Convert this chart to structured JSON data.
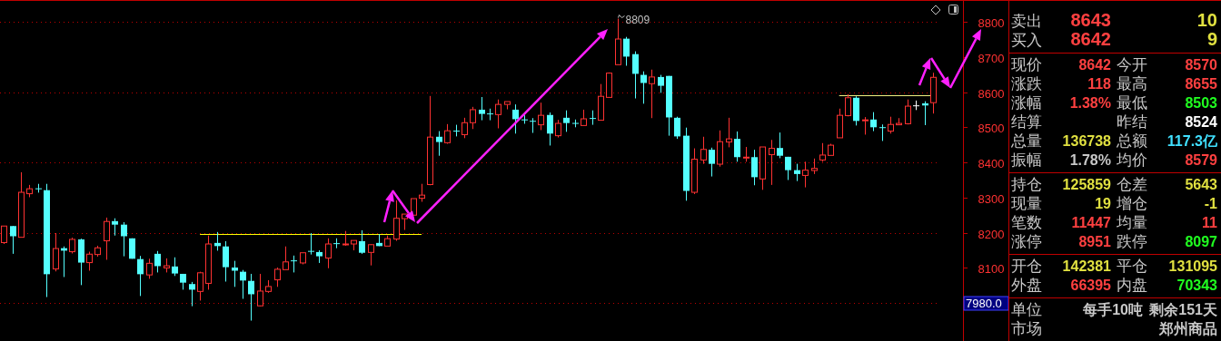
{
  "chart_data": [
    {
      "type": "candlestick",
      "tick_labels": "y",
      "grid": "y",
      "categories": [
        null,
        null,
        null,
        null,
        null,
        null,
        null,
        null,
        null,
        null,
        null,
        null,
        null,
        null,
        null,
        null,
        null,
        null,
        null,
        null,
        null,
        null,
        null,
        null,
        null,
        null,
        null,
        null,
        null,
        null,
        null,
        null,
        null,
        null,
        null,
        null,
        null,
        null,
        null,
        null,
        null,
        null,
        null,
        null,
        null,
        null,
        null,
        null,
        null,
        null,
        null,
        null,
        null,
        null,
        null,
        null,
        null,
        null,
        null,
        null,
        null,
        null,
        null,
        null,
        null,
        null,
        null,
        null,
        null,
        null,
        null,
        null,
        null,
        null,
        null,
        null,
        null,
        null,
        null,
        null,
        null,
        null,
        null,
        null,
        null,
        null,
        null,
        null,
        null,
        null,
        null,
        null,
        null,
        null,
        null,
        null,
        null,
        null,
        null,
        null,
        null,
        null,
        null,
        null,
        null,
        null,
        null,
        null,
        null,
        null
      ],
      "ohlc": [
        [
          8172,
          8219,
          8168,
          8219
        ],
        [
          8219,
          8219,
          8140,
          8190
        ],
        [
          8187,
          8372,
          8187,
          8315
        ],
        [
          8311,
          8336,
          8301,
          8325
        ],
        [
          8325,
          8339,
          8314,
          8324
        ],
        [
          8321,
          8339,
          8017,
          8082
        ],
        [
          8097,
          8199,
          8090,
          8155
        ],
        [
          8156,
          8161,
          8074,
          8149
        ],
        [
          8146,
          8186,
          8141,
          8181
        ],
        [
          8181,
          8183,
          8051,
          8115
        ],
        [
          8115,
          8146,
          8092,
          8139
        ],
        [
          8138,
          8163,
          8132,
          8157
        ],
        [
          8177,
          8243,
          8123,
          8232
        ],
        [
          8233,
          8241,
          8192,
          8223
        ],
        [
          8223,
          8230,
          8133,
          8190
        ],
        [
          8184,
          8184,
          8126,
          8126
        ],
        [
          8125,
          8134,
          8020,
          8082
        ],
        [
          8080,
          8126,
          8069,
          8113
        ],
        [
          8140,
          8148,
          8087,
          8105
        ],
        [
          8100,
          8127,
          8087,
          8106
        ],
        [
          8104,
          8130,
          8077,
          8084
        ],
        [
          8083,
          8083,
          8038,
          8058
        ],
        [
          8054,
          8060,
          7991,
          8038
        ],
        [
          8033,
          8089,
          8007,
          8086
        ],
        [
          8056,
          8192,
          8038,
          8168
        ],
        [
          8171,
          8202,
          8149,
          8162
        ],
        [
          8161,
          8176,
          8061,
          8102
        ],
        [
          8101,
          8120,
          8046,
          8092
        ],
        [
          8089,
          8094,
          8012,
          8064
        ],
        [
          8063,
          8083,
          7950,
          8025
        ],
        [
          7992,
          8083,
          7990,
          8034
        ],
        [
          8033,
          8065,
          8029,
          8047
        ],
        [
          8066,
          8101,
          8046,
          8096
        ],
        [
          8095,
          8161,
          8095,
          8117
        ],
        [
          8120,
          8135,
          8087,
          8119
        ],
        [
          8114,
          8143,
          8110,
          8143
        ],
        [
          8147,
          8199,
          8138,
          8146
        ],
        [
          8145,
          8150,
          8114,
          8133
        ],
        [
          8128,
          8184,
          8099,
          8168
        ],
        [
          8169,
          8184,
          8156,
          8168
        ],
        [
          8167,
          8205,
          8163,
          8168
        ],
        [
          8168,
          8178,
          8150,
          8178
        ],
        [
          8176,
          8207,
          8140,
          8143
        ],
        [
          8144,
          8168,
          8107,
          8166
        ],
        [
          8171,
          8196,
          8162,
          8162
        ],
        [
          8162,
          8192,
          8162,
          8183
        ],
        [
          8182,
          8292,
          8177,
          8241
        ],
        [
          8240,
          8253,
          8208,
          8253
        ],
        [
          8250,
          8297,
          8250,
          8297
        ],
        [
          8298,
          8339,
          8288,
          8307
        ],
        [
          8337,
          8589,
          8335,
          8472
        ],
        [
          8473,
          8489,
          8419,
          8458
        ],
        [
          8456,
          8509,
          8453,
          8490
        ],
        [
          8489,
          8507,
          8474,
          8488
        ],
        [
          8479,
          8527,
          8469,
          8513
        ],
        [
          8513,
          8558,
          8495,
          8550
        ],
        [
          8550,
          8586,
          8520,
          8538
        ],
        [
          8538,
          8553,
          8520,
          8537
        ],
        [
          8536,
          8579,
          8497,
          8565
        ],
        [
          8565,
          8573,
          8551,
          8573
        ],
        [
          8550,
          8565,
          8482,
          8523
        ],
        [
          8521,
          8534,
          8510,
          8520
        ],
        [
          8517,
          8526,
          8484,
          8516
        ],
        [
          8507,
          8570,
          8492,
          8534
        ],
        [
          8535,
          8542,
          8448,
          8482
        ],
        [
          8476,
          8521,
          8471,
          8511
        ],
        [
          8527,
          8548,
          8487,
          8512
        ],
        [
          8511,
          8522,
          8500,
          8510
        ],
        [
          8505,
          8550,
          8505,
          8524
        ],
        [
          8525,
          8548,
          8507,
          8524
        ],
        [
          8520,
          8623,
          8520,
          8588
        ],
        [
          8585,
          8656,
          8585,
          8654
        ],
        [
          8678,
          8809,
          8678,
          8751
        ],
        [
          8752,
          8757,
          8675,
          8701
        ],
        [
          8708,
          8716,
          8582,
          8652
        ],
        [
          8649,
          8659,
          8567,
          8626
        ],
        [
          8624,
          8664,
          8526,
          8643
        ],
        [
          8643,
          8649,
          8598,
          8618
        ],
        [
          8646,
          8646,
          8476,
          8528
        ],
        [
          8527,
          8530,
          8467,
          8474
        ],
        [
          8476,
          8499,
          8291,
          8319
        ],
        [
          8315,
          8440,
          8310,
          8409
        ],
        [
          8407,
          8473,
          8396,
          8437
        ],
        [
          8436,
          8442,
          8360,
          8396
        ],
        [
          8395,
          8491,
          8388,
          8459
        ],
        [
          8458,
          8527,
          8443,
          8467
        ],
        [
          8467,
          8488,
          8402,
          8415
        ],
        [
          8414,
          8444,
          8402,
          8415
        ],
        [
          8415,
          8436,
          8335,
          8358
        ],
        [
          8353,
          8444,
          8322,
          8444
        ],
        [
          8422,
          8464,
          8336,
          8440
        ],
        [
          8441,
          8485,
          8412,
          8419
        ],
        [
          8416,
          8416,
          8350,
          8378
        ],
        [
          8378,
          8396,
          8347,
          8367
        ],
        [
          8363,
          8402,
          8329,
          8378
        ],
        [
          8377,
          8411,
          8367,
          8383
        ],
        [
          8407,
          8455,
          8402,
          8421
        ],
        [
          8420,
          8453,
          8420,
          8449
        ],
        [
          8470,
          8553,
          8470,
          8534
        ],
        [
          8533,
          8594,
          8531,
          8584
        ],
        [
          8584,
          8588,
          8505,
          8518
        ],
        [
          8520,
          8529,
          8479,
          8521
        ],
        [
          8522,
          8543,
          8489,
          8500
        ],
        [
          8499,
          8508,
          8461,
          8498
        ],
        [
          8489,
          8530,
          8482,
          8508
        ],
        [
          8507,
          8526,
          8506,
          8511
        ],
        [
          8510,
          8579,
          8508,
          8560
        ],
        [
          8561,
          8576,
          8549,
          8561
        ],
        [
          8568,
          8574,
          8506,
          8562
        ],
        [
          8570,
          8655,
          8539,
          8642
        ]
      ],
      "colors": [
        "#ff3232",
        "#54ffff",
        "#ff3232",
        "#ff3232",
        "#54ffff",
        "#54ffff",
        "#ff3232",
        "#54ffff",
        "#ff3232",
        "#54ffff",
        "#ff3232",
        "#ff3232",
        "#ff3232",
        "#54ffff",
        "#54ffff",
        "#54ffff",
        "#54ffff",
        "#ff3232",
        "#54ffff",
        "#ff3232",
        "#54ffff",
        "#54ffff",
        "#54ffff",
        "#ff3232",
        "#ff3232",
        "#54ffff",
        "#54ffff",
        "#54ffff",
        "#54ffff",
        "#54ffff",
        "#ff3232",
        "#ff3232",
        "#ff3232",
        "#ff3232",
        "#54ffff",
        "#ff3232",
        "#54ffff",
        "#54ffff",
        "#ff3232",
        "#54ffff",
        "#ff3232",
        "#ff3232",
        "#54ffff",
        "#ff3232",
        "#54ffff",
        "#ff3232",
        "#ff3232",
        "#ff3232",
        "#ff3232",
        "#ff3232",
        "#ff3232",
        "#54ffff",
        "#ff3232",
        "#54ffff",
        "#ff3232",
        "#ff3232",
        "#54ffff",
        "#54ffff",
        "#ff3232",
        "#ff3232",
        "#54ffff",
        "#54ffff",
        "#54ffff",
        "#ff3232",
        "#54ffff",
        "#ff3232",
        "#54ffff",
        "#54ffff",
        "#ff3232",
        "#54ffff",
        "#ff3232",
        "#ff3232",
        "#ff3232",
        "#54ffff",
        "#54ffff",
        "#54ffff",
        "#ff3232",
        "#54ffff",
        "#54ffff",
        "#54ffff",
        "#54ffff",
        "#ff3232",
        "#ff3232",
        "#54ffff",
        "#ff3232",
        "#ff3232",
        "#54ffff",
        "#ff3232",
        "#54ffff",
        "#ff3232",
        "#ff3232",
        "#54ffff",
        "#54ffff",
        "#54ffff",
        "#ff3232",
        "#ff3232",
        "#ff3232",
        "#ff3232",
        "#ff3232",
        "#ff3232",
        "#54ffff",
        "#ff3232",
        "#54ffff",
        "#54ffff",
        "#ff3232",
        "#ff3232",
        "#ff3232",
        "#ffffff",
        "#54ffff",
        "#ff3232"
      ],
      "series": [
        {
          "type": "line",
          "color": "#ffff00",
          "values": [
            null,
            null,
            null,
            null,
            null,
            null,
            null,
            null,
            null,
            null,
            null,
            null,
            null,
            null,
            null,
            null,
            null,
            null,
            null,
            null,
            null,
            null,
            null,
            8196,
            8196,
            8196,
            8196,
            8196,
            8196,
            8196,
            8196,
            8196,
            8196,
            8196,
            8196,
            8196,
            8196,
            8196,
            8196,
            8196,
            8196,
            8196,
            8196,
            8196,
            8196,
            8196,
            8196,
            8196,
            8196,
            8196,
            null,
            null,
            null,
            null,
            null,
            null,
            null,
            null,
            null,
            null,
            null,
            null,
            null,
            null,
            null,
            null,
            null,
            null,
            null,
            null,
            null,
            null,
            null,
            null,
            null,
            null,
            null,
            null,
            null,
            null,
            null,
            null,
            null,
            null,
            null,
            null,
            null,
            null,
            null,
            null,
            null,
            null,
            null,
            null,
            null,
            null,
            null,
            null,
            null,
            null,
            null,
            null,
            null,
            null,
            null,
            null,
            null,
            null,
            null,
            null
          ]
        },
        {
          "type": "line",
          "color": "#f0f080",
          "values": [
            null,
            null,
            null,
            null,
            null,
            null,
            null,
            null,
            null,
            null,
            null,
            null,
            null,
            null,
            null,
            null,
            null,
            null,
            null,
            null,
            null,
            null,
            null,
            null,
            null,
            null,
            null,
            null,
            null,
            null,
            null,
            null,
            null,
            null,
            null,
            null,
            null,
            null,
            null,
            null,
            null,
            null,
            null,
            null,
            null,
            null,
            null,
            null,
            null,
            null,
            null,
            null,
            null,
            null,
            null,
            null,
            null,
            null,
            null,
            null,
            null,
            null,
            null,
            null,
            null,
            null,
            null,
            null,
            null,
            null,
            null,
            null,
            null,
            null,
            null,
            null,
            null,
            null,
            null,
            null,
            null,
            null,
            null,
            null,
            null,
            null,
            null,
            null,
            null,
            null,
            null,
            null,
            null,
            null,
            null,
            null,
            null,
            null,
            8592,
            8592,
            8592,
            8592,
            8592,
            8592,
            8592,
            8592,
            8592,
            8592,
            8592,
            8592
          ]
        }
      ],
      "ylim": [
        7892,
        8862
      ],
      "yticks": [
        {
          "value": 8000,
          "label": null
        },
        8100,
        8200,
        8300,
        8400,
        8500,
        8600,
        8700,
        8800
      ],
      "annotations": [
        "8809",
        "7980.0"
      ]
    },
    {
      "type": "other",
      "annotations": [
        "卖出",
        "8643",
        "10",
        "买入",
        "8642",
        "9",
        "现价",
        "8642",
        "今开",
        "8570",
        "涨跌",
        "118",
        "最高",
        "8655",
        "涨幅",
        "1.38%",
        "最低",
        "8503",
        "结算",
        "昨结",
        "8524",
        "总量",
        "136738",
        "总额",
        "117.3亿",
        "振幅",
        "1.78%",
        "均价",
        "8579",
        "持仓",
        "125859",
        "仓差",
        "5643",
        "现量",
        "19",
        "增仓",
        "-1",
        "笔数",
        "11447",
        "均量",
        "11",
        "涨停",
        "8951",
        "跌停",
        "8097",
        "开仓",
        "142381",
        "平仓",
        "131095",
        "外盘",
        "66395",
        "内盘",
        "70343",
        "单位",
        "每手10吨",
        "剩余151天",
        "市场",
        "郑州商品"
      ]
    }
  ]
}
